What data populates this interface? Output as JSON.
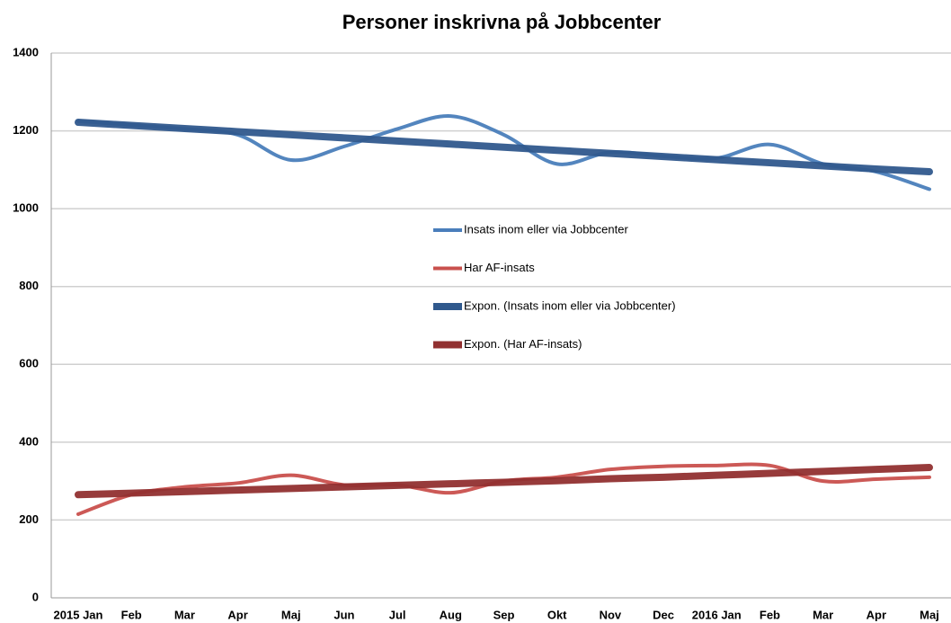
{
  "chart_data": {
    "type": "line",
    "title": "Personer inskrivna på Jobbcenter",
    "categories": [
      "2015 Jan",
      "Feb",
      "Mar",
      "Apr",
      "Maj",
      "Jun",
      "Jul",
      "Aug",
      "Sep",
      "Okt",
      "Nov",
      "Dec",
      "2016 Jan",
      "Feb",
      "Mar",
      "Apr",
      "Maj"
    ],
    "series": [
      {
        "name": "Insats inom eller via Jobbcenter",
        "color": "#4a7ebb",
        "width": 4,
        "values": [
          1225,
          1215,
          1205,
          1190,
          1125,
          1160,
          1205,
          1238,
          1190,
          1115,
          1145,
          1135,
          1130,
          1165,
          1115,
          1095,
          1050
        ]
      },
      {
        "name": "Har AF-insats",
        "color": "#c9504d",
        "width": 4,
        "values": [
          215,
          265,
          285,
          295,
          315,
          290,
          290,
          270,
          300,
          310,
          330,
          338,
          340,
          340,
          300,
          305,
          310
        ]
      },
      {
        "name": "Expon. (Insats inom eller via Jobbcenter)",
        "color": "#30598d",
        "width": 8,
        "values": [
          1222,
          1214,
          1206,
          1198,
          1190,
          1182,
          1174,
          1166,
          1158,
          1150,
          1142,
          1134,
          1126,
          1118,
          1110,
          1102,
          1095
        ]
      },
      {
        "name": "Expon. (Har AF-insats)",
        "color": "#913030",
        "width": 8,
        "values": [
          265,
          269,
          273,
          277,
          281,
          285,
          289,
          293,
          297,
          301,
          306,
          310,
          315,
          320,
          325,
          330,
          335
        ]
      }
    ],
    "ylim": [
      0,
      1400
    ],
    "yticks": [
      0,
      200,
      400,
      600,
      800,
      1000,
      1200,
      1400
    ],
    "grid": true
  }
}
